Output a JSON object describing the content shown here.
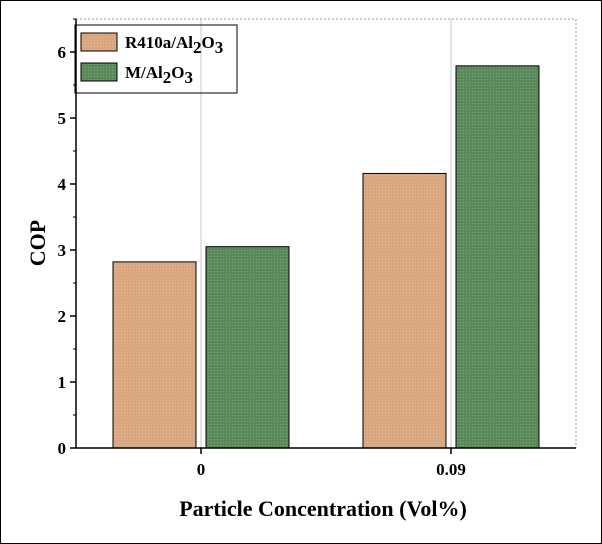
{
  "chart_data": {
    "type": "bar",
    "xlabel": "Particle Concentration (Vol%)",
    "ylabel": "COP",
    "categories": [
      "0",
      "0.09"
    ],
    "series": [
      {
        "name_main": "R410a/Al",
        "name_sub1": "2",
        "name_mid": "O",
        "name_sub2": "3",
        "values": [
          2.82,
          4.16
        ],
        "color": "#d9a77f"
      },
      {
        "name_main": "M/Al",
        "name_sub1": "2",
        "name_mid": "O",
        "name_sub2": "3",
        "values": [
          3.05,
          5.79
        ],
        "color": "#5a8a5a"
      }
    ],
    "ylim": [
      0,
      6.5
    ],
    "yticks": [
      "0",
      "1",
      "2",
      "3",
      "4",
      "5",
      "6"
    ],
    "grid": true,
    "legend_position": "top-left"
  }
}
